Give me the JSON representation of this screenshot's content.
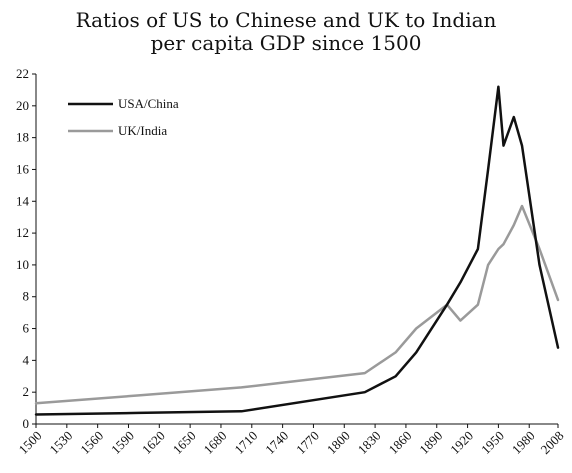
{
  "chart_data": {
    "type": "line",
    "title_lines": [
      "Ratios of US to Chinese and UK to Indian",
      "per capita GDP since 1500"
    ],
    "xlabel": "",
    "ylabel": "",
    "xlim": [
      1500,
      2008
    ],
    "ylim": [
      0,
      22
    ],
    "x_ticks": [
      "1500",
      "1530",
      "1560",
      "1590",
      "1620",
      "1650",
      "1680",
      "1710",
      "1740",
      "1770",
      "1800",
      "1830",
      "1860",
      "1890",
      "1920",
      "1950",
      "1980",
      "2008"
    ],
    "y_ticks": [
      "0",
      "2",
      "4",
      "6",
      "8",
      "10",
      "12",
      "14",
      "16",
      "18",
      "20",
      "22"
    ],
    "legend_position": "top-left",
    "grid": false,
    "series": [
      {
        "name": "USA/China",
        "color": "#111111",
        "x": [
          1500,
          1600,
          1700,
          1820,
          1850,
          1870,
          1900,
          1913,
          1930,
          1940,
          1950,
          1955,
          1965,
          1973,
          1990,
          2008
        ],
        "y": [
          0.6,
          0.7,
          0.8,
          2.0,
          3.0,
          4.5,
          7.5,
          8.9,
          11.0,
          16.0,
          21.2,
          17.5,
          19.3,
          17.5,
          10.0,
          4.8
        ]
      },
      {
        "name": "UK/India",
        "color": "#9a9a9a",
        "x": [
          1500,
          1600,
          1700,
          1820,
          1850,
          1870,
          1900,
          1913,
          1930,
          1940,
          1950,
          1955,
          1965,
          1973,
          1990,
          2008
        ],
        "y": [
          1.3,
          1.8,
          2.3,
          3.2,
          4.5,
          6.0,
          7.5,
          6.5,
          7.5,
          10.0,
          11.0,
          11.3,
          12.5,
          13.7,
          11.0,
          7.8
        ]
      }
    ]
  }
}
